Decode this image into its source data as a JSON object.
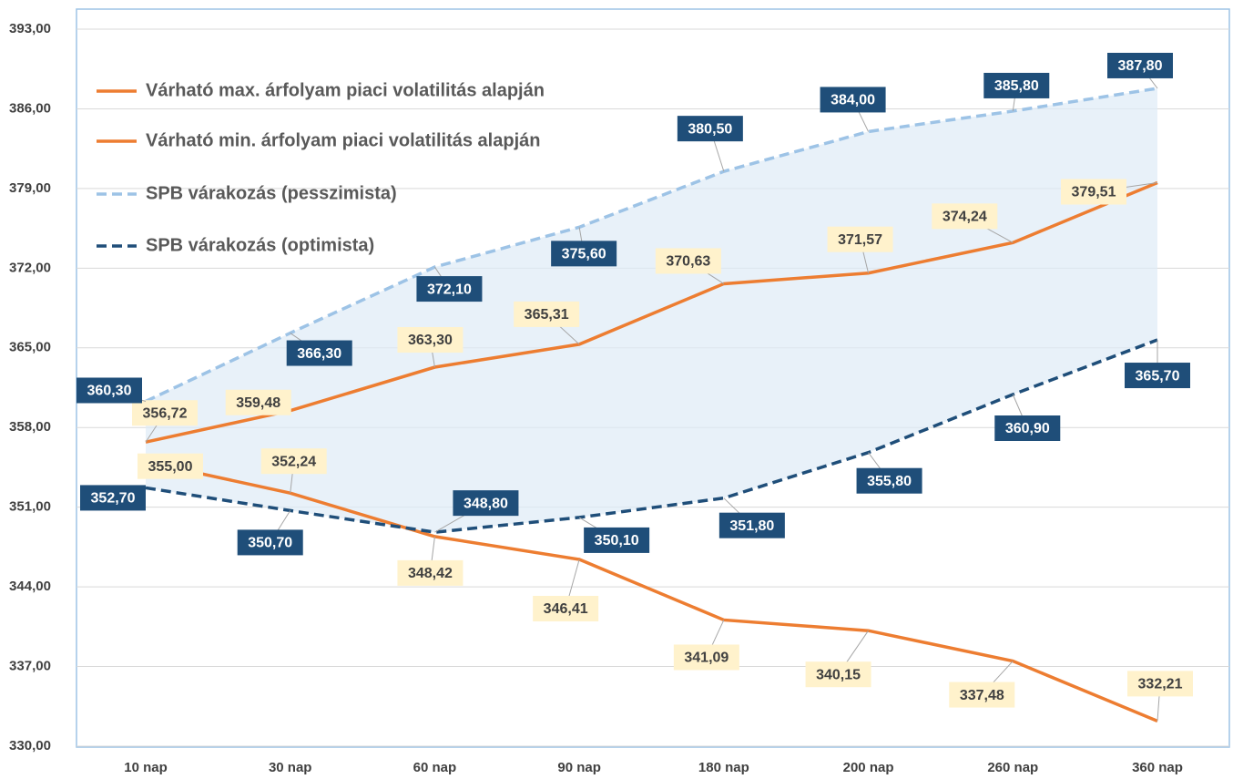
{
  "chart_data": {
    "type": "line",
    "categories": [
      "10 nap",
      "30 nap",
      "60 nap",
      "90 nap",
      "180 nap",
      "200 nap",
      "260 nap",
      "360 nap"
    ],
    "series": [
      {
        "name": "Várható max. árfolyam piaci volatilitás alapján",
        "color": "#ED7D31",
        "dash": "solid",
        "values": [
          356.72,
          359.48,
          363.3,
          365.31,
          370.63,
          371.57,
          374.24,
          379.51
        ],
        "value_labels": [
          "356,72",
          "359,48",
          "363,30",
          "365,31",
          "370,63",
          "371,57",
          "374,24",
          "379,51"
        ]
      },
      {
        "name": "Várható min. árfolyam piaci volatilitás alapján",
        "color": "#ED7D31",
        "dash": "solid",
        "values": [
          355.0,
          352.24,
          348.42,
          346.41,
          341.09,
          340.15,
          337.48,
          332.21
        ],
        "value_labels": [
          "355,00",
          "352,24",
          "348,42",
          "346,41",
          "341,09",
          "340,15",
          "337,48",
          "332,21"
        ]
      },
      {
        "name": "SPB várakozás (pesszimista)",
        "color": "#9DC3E6",
        "dash": "dashed",
        "values": [
          360.3,
          366.3,
          372.1,
          375.6,
          380.5,
          384.0,
          385.8,
          387.8
        ],
        "value_labels": [
          "360,30",
          "366,30",
          "372,10",
          "375,60",
          "380,50",
          "384,00",
          "385,80",
          "387,80"
        ]
      },
      {
        "name": "SPB várakozás (optimista)",
        "color": "#1F4E79",
        "dash": "dashed",
        "values": [
          352.7,
          350.7,
          348.8,
          350.1,
          351.8,
          355.8,
          360.9,
          365.7
        ],
        "value_labels": [
          "352,70",
          "350,70",
          "348,80",
          "350,10",
          "351,80",
          "355,80",
          "360,90",
          "365,70"
        ]
      }
    ],
    "ylim": [
      330,
      393
    ],
    "yticks": [
      {
        "value": 330,
        "label": "330,00"
      },
      {
        "value": 337,
        "label": "337,00"
      },
      {
        "value": 344,
        "label": "344,00"
      },
      {
        "value": 351,
        "label": "351,00"
      },
      {
        "value": 358,
        "label": "358,00"
      },
      {
        "value": 365,
        "label": "365,00"
      },
      {
        "value": 372,
        "label": "372,00"
      },
      {
        "value": 379,
        "label": "379,00"
      },
      {
        "value": 386,
        "label": "386,00"
      },
      {
        "value": 393,
        "label": "393,00"
      }
    ],
    "grid": true,
    "legend": "upper left"
  }
}
